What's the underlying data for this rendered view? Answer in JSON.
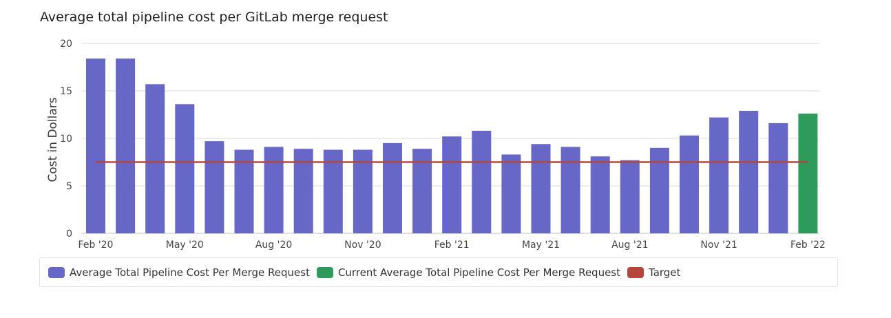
{
  "title": "Average total pipeline cost per GitLab merge request",
  "colors": {
    "bar": "#6767c7",
    "current": "#2e9a5c",
    "target": "#b5463c",
    "grid": "#d9d9d9"
  },
  "legend": [
    {
      "label": "Average Total Pipeline Cost Per Merge Request",
      "color": "#6767c7"
    },
    {
      "label": "Current Average Total Pipeline Cost Per Merge Request",
      "color": "#2e9a5c"
    },
    {
      "label": "Target",
      "color": "#b5463c"
    }
  ],
  "chart_data": {
    "type": "bar",
    "title": "Average total pipeline cost per GitLab merge request",
    "ylabel": "Cost in Dollars",
    "xlabel": "",
    "ylim": [
      0,
      20
    ],
    "yticks": [
      0,
      5,
      10,
      15,
      20
    ],
    "grid": true,
    "legend_position": "bottom",
    "categories": [
      "Feb '20",
      "Mar '20",
      "Apr '20",
      "May '20",
      "Jun '20",
      "Jul '20",
      "Aug '20",
      "Sep '20",
      "Oct '20",
      "Nov '20",
      "Dec '20",
      "Jan '21",
      "Feb '21",
      "Mar '21",
      "Apr '21",
      "May '21",
      "Jun '21",
      "Jul '21",
      "Aug '21",
      "Sep '21",
      "Oct '21",
      "Nov '21",
      "Dec '21",
      "Jan '22",
      "Feb '22"
    ],
    "xtick_labels": [
      "Feb '20",
      "May '20",
      "Aug '20",
      "Nov '20",
      "Feb '21",
      "May '21",
      "Aug '21",
      "Nov '21",
      "Feb '22"
    ],
    "series": [
      {
        "name": "Average Total Pipeline Cost Per Merge Request",
        "values": [
          18.4,
          18.4,
          15.7,
          13.6,
          9.7,
          8.8,
          9.1,
          8.9,
          8.8,
          8.8,
          9.5,
          8.9,
          10.2,
          10.8,
          8.3,
          9.4,
          9.1,
          8.1,
          7.7,
          9.0,
          10.3,
          12.2,
          12.9,
          11.6,
          null
        ]
      },
      {
        "name": "Current Average Total Pipeline Cost Per Merge Request",
        "values": [
          null,
          null,
          null,
          null,
          null,
          null,
          null,
          null,
          null,
          null,
          null,
          null,
          null,
          null,
          null,
          null,
          null,
          null,
          null,
          null,
          null,
          null,
          null,
          null,
          12.6
        ]
      },
      {
        "name": "Target",
        "type": "line",
        "value": 7.5
      }
    ]
  }
}
